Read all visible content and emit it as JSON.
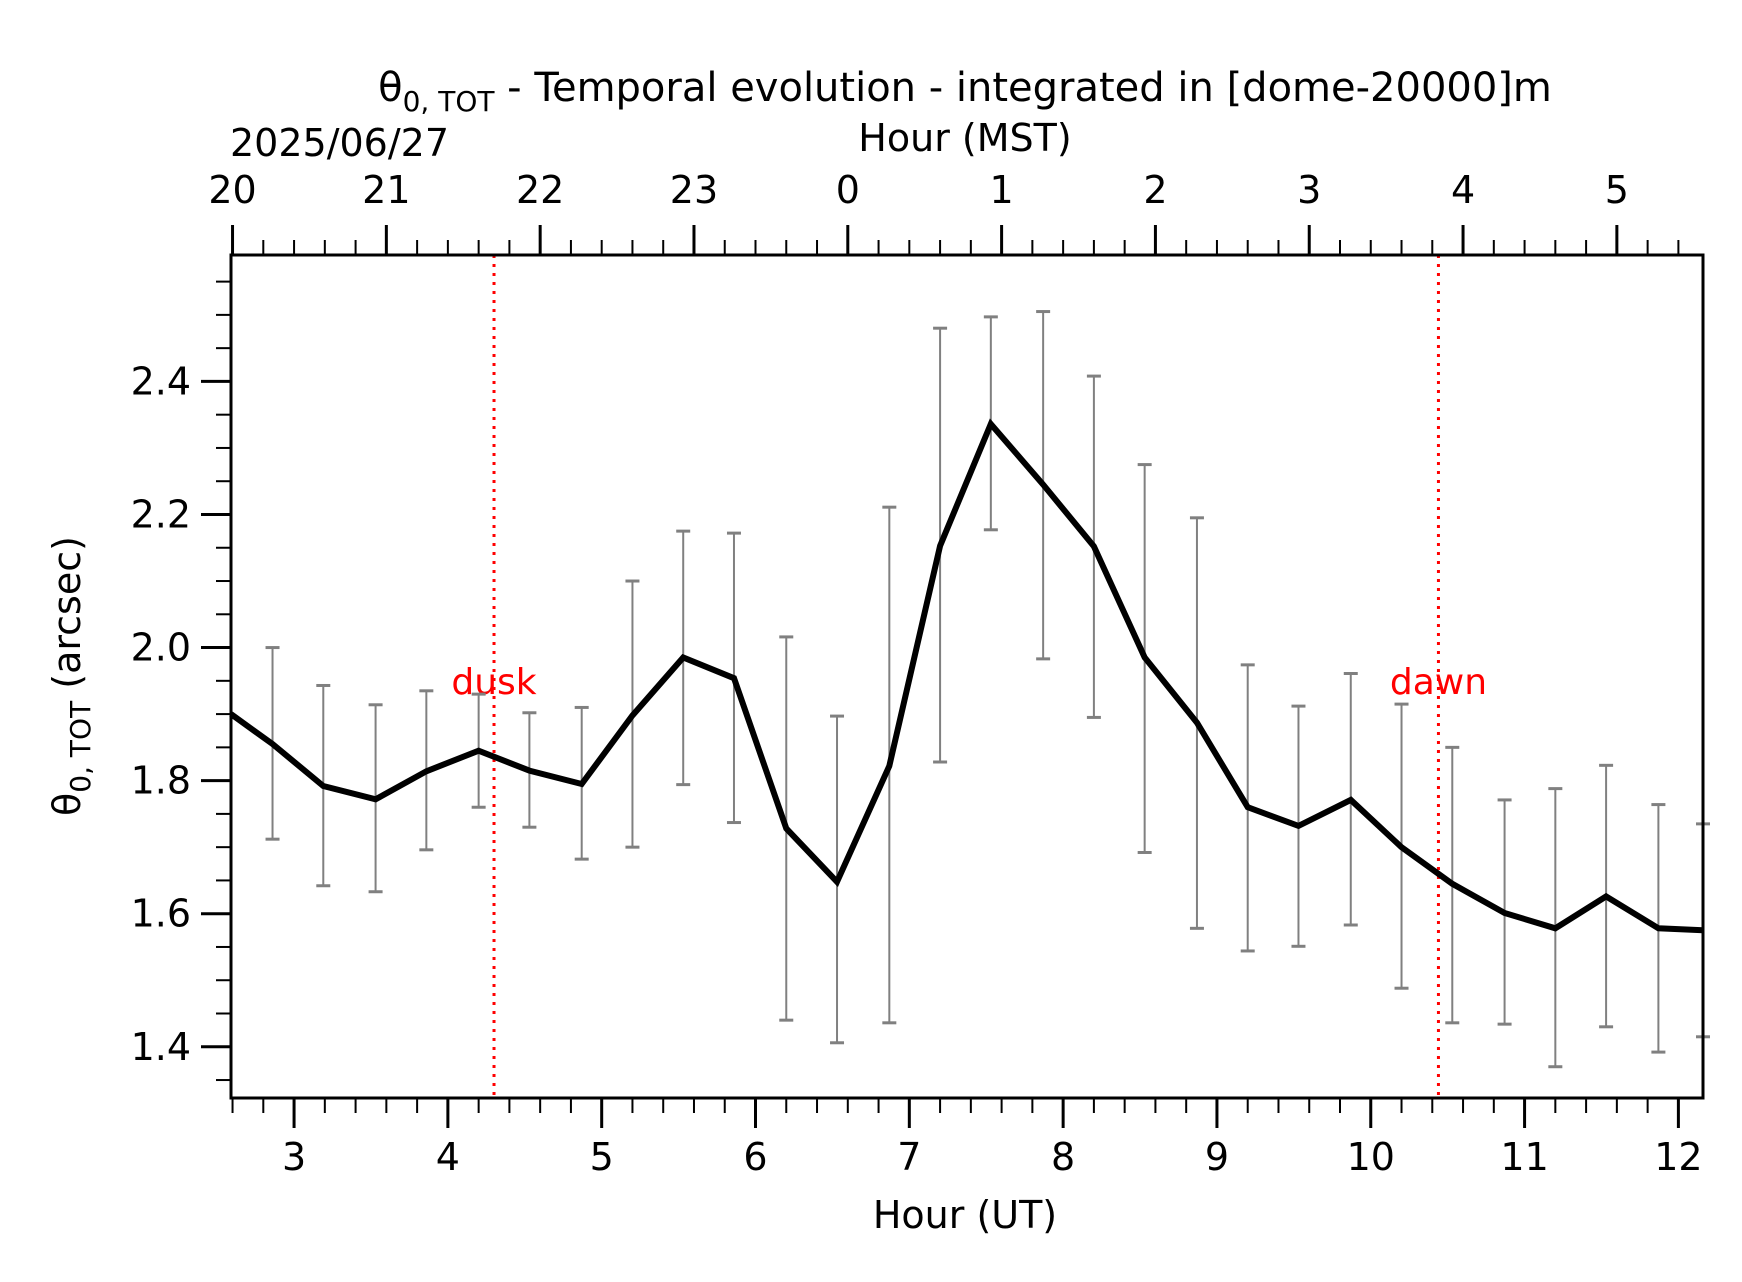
{
  "chart_data": {
    "type": "line",
    "title": "θ0, TOT - Temporal evolution - integrated in [dome-20000]m",
    "title_main": "θ",
    "title_sub": "0, TOT",
    "title_rest": " - Temporal evolution - integrated in [dome-20000]m",
    "date_label": "2025/06/27",
    "top_xlabel": "Hour (MST)",
    "xlabel": "Hour (UT)",
    "ylabel": "θ0, TOT (arcsec)",
    "ylabel_main": "θ",
    "ylabel_sub": "0, TOT",
    "ylabel_rest": " (arcsec)",
    "xlim": [
      2.59,
      12.16
    ],
    "ylim": [
      1.323,
      2.59
    ],
    "x_ticks": [
      3,
      4,
      5,
      6,
      7,
      8,
      9,
      10,
      11,
      12
    ],
    "x_tick_labels": [
      "3",
      "4",
      "5",
      "6",
      "7",
      "8",
      "9",
      "10",
      "11",
      "12"
    ],
    "top_x_ticks": [
      2.6,
      3.6,
      4.6,
      5.6,
      6.6,
      7.6,
      8.6,
      9.6,
      10.6,
      11.6
    ],
    "top_x_tick_labels": [
      "20",
      "21",
      "22",
      "23",
      "0",
      "1",
      "2",
      "3",
      "4",
      "5"
    ],
    "y_ticks": [
      1.4,
      1.6,
      1.8,
      2.0,
      2.2,
      2.4
    ],
    "y_tick_labels": [
      "1.4",
      "1.6",
      "1.8",
      "2.0",
      "2.2",
      "2.4"
    ],
    "grid": false,
    "legend": "none",
    "series": [
      {
        "x": [
          2.59,
          2.86,
          3.19,
          3.53,
          3.86,
          4.2,
          4.53,
          4.87,
          5.2,
          5.53,
          5.86,
          6.2,
          6.53,
          6.87,
          7.2,
          7.53,
          7.87,
          8.2,
          8.53,
          8.87,
          9.2,
          9.53,
          9.87,
          10.2,
          10.53,
          10.87,
          11.2,
          11.53,
          11.87,
          12.16
        ],
        "y": [
          1.9,
          1.855,
          1.792,
          1.772,
          1.814,
          1.845,
          1.815,
          1.795,
          1.898,
          1.985,
          1.954,
          1.728,
          1.648,
          1.822,
          2.153,
          2.336,
          2.245,
          2.152,
          1.985,
          1.887,
          1.76,
          1.732,
          1.771,
          1.7,
          1.645,
          1.601,
          1.578,
          1.626,
          1.578,
          1.575
        ],
        "y_err_low": [
          null,
          1.712,
          1.642,
          1.633,
          1.696,
          1.76,
          1.73,
          1.682,
          1.7,
          1.794,
          1.737,
          1.44,
          1.406,
          1.436,
          1.828,
          2.177,
          1.983,
          1.895,
          1.692,
          1.578,
          1.544,
          1.551,
          1.583,
          1.488,
          1.436,
          1.434,
          1.37,
          1.43,
          1.392,
          1.415
        ],
        "y_err_high": [
          null,
          2.0,
          1.943,
          1.914,
          1.935,
          1.93,
          1.902,
          1.91,
          2.1,
          2.175,
          2.172,
          2.016,
          1.897,
          2.211,
          2.48,
          2.497,
          2.505,
          2.408,
          2.275,
          2.195,
          1.974,
          1.912,
          1.961,
          1.915,
          1.85,
          1.771,
          1.788,
          1.823,
          1.764,
          1.735
        ],
        "color": "#000000",
        "errorbar_color": "#808080"
      }
    ],
    "vlines": [
      {
        "x": 4.3,
        "label": "dusk",
        "color": "#ff0000"
      },
      {
        "x": 10.44,
        "label": "dawn",
        "color": "#ff0000"
      }
    ],
    "annotation_y": 1.95
  }
}
